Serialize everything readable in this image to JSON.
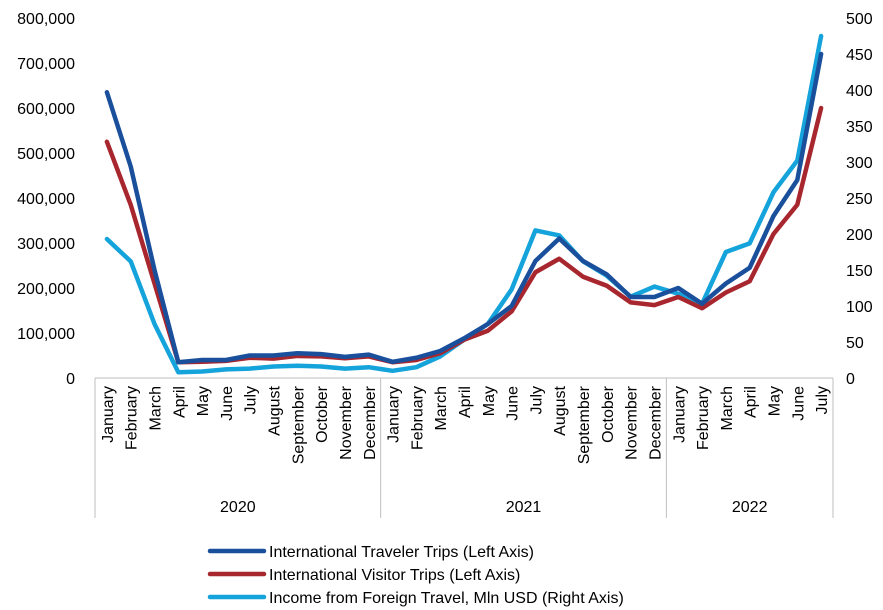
{
  "chart_data": {
    "type": "line",
    "left_axis": {
      "ylim": [
        0,
        800000
      ],
      "ticks": [
        "0",
        "100,000",
        "200,000",
        "300,000",
        "400,000",
        "500,000",
        "600,000",
        "700,000",
        "800,000"
      ],
      "tick_values": [
        0,
        100000,
        200000,
        300000,
        400000,
        500000,
        600000,
        700000,
        800000
      ]
    },
    "right_axis": {
      "ylim": [
        0,
        500
      ],
      "ticks": [
        "0",
        "50",
        "100",
        "150",
        "200",
        "250",
        "300",
        "350",
        "400",
        "450",
        "500"
      ],
      "tick_values": [
        0,
        50,
        100,
        150,
        200,
        250,
        300,
        350,
        400,
        450,
        500
      ]
    },
    "categories": [
      "January",
      "February",
      "March",
      "April",
      "May",
      "June",
      "July",
      "August",
      "September",
      "October",
      "November",
      "December",
      "January",
      "February",
      "March",
      "April",
      "May",
      "June",
      "July",
      "August",
      "September",
      "October",
      "November",
      "December",
      "January",
      "February",
      "March",
      "April",
      "May",
      "June",
      "July"
    ],
    "year_groups": [
      {
        "label": "2020",
        "count": 12
      },
      {
        "label": "2021",
        "count": 12
      },
      {
        "label": "2022",
        "count": 7
      }
    ],
    "series": [
      {
        "name": "International Traveler Trips (Left Axis)",
        "axis": "left",
        "color": "#1a4f9c",
        "values": [
          635000,
          470000,
          240000,
          35000,
          40000,
          40000,
          50000,
          50000,
          55000,
          53000,
          47000,
          52000,
          36000,
          45000,
          60000,
          88000,
          120000,
          160000,
          260000,
          310000,
          260000,
          230000,
          180000,
          180000,
          200000,
          165000,
          210000,
          245000,
          360000,
          440000,
          720000
        ]
      },
      {
        "name": "International Visitor Trips (Left Axis)",
        "axis": "left",
        "color": "#a8262e",
        "values": [
          525000,
          385000,
          210000,
          35000,
          36000,
          38000,
          45000,
          43000,
          49000,
          48000,
          44000,
          48000,
          35000,
          40000,
          55000,
          85000,
          105000,
          148000,
          235000,
          265000,
          225000,
          205000,
          168000,
          162000,
          180000,
          155000,
          190000,
          215000,
          320000,
          385000,
          600000
        ]
      },
      {
        "name": "Income from Foreign Travel, Mln USD (Right Axis)",
        "axis": "right",
        "color": "#14a3da",
        "values": [
          193,
          162,
          75,
          8,
          9,
          12,
          13,
          16,
          17,
          16,
          13,
          15,
          10,
          15,
          30,
          53,
          75,
          123,
          205,
          198,
          162,
          142,
          113,
          127,
          117,
          103,
          175,
          187,
          258,
          302,
          475
        ]
      }
    ]
  }
}
